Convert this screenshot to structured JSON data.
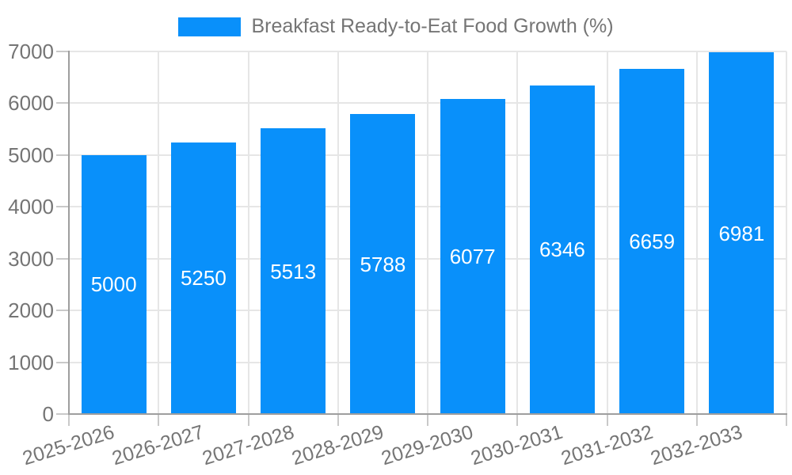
{
  "chart_data": {
    "type": "bar",
    "legend": {
      "label": "Breakfast Ready-to-Eat Food Growth (%)",
      "position": "top-center"
    },
    "categories": [
      "2025-2026",
      "2026-2027",
      "2027-2028",
      "2028-2029",
      "2029-2030",
      "2030-2031",
      "2031-2032",
      "2032-2033"
    ],
    "series": [
      {
        "name": "Breakfast Ready-to-Eat Food Growth (%)",
        "values": [
          5000,
          5250,
          5513,
          5788,
          6077,
          6346,
          6659,
          6981
        ]
      }
    ],
    "value_labels": [
      "5000",
      "5250",
      "5513",
      "5788",
      "6077",
      "6346",
      "6659",
      "6981"
    ],
    "yticks": [
      0,
      1000,
      2000,
      3000,
      4000,
      5000,
      6000,
      7000
    ],
    "ytick_labels": [
      "0",
      "1000",
      "2000",
      "3000",
      "4000",
      "5000",
      "6000",
      "7000"
    ],
    "ylim": [
      0,
      7000
    ],
    "grid": true,
    "x_label_rotation_deg": -17,
    "colors": {
      "bar": "#0990FA",
      "value_label": "#FFFFFF",
      "axis_line": "#9E9E9E",
      "grid_line": "#E6E6E6",
      "tick_line": "#C9C9C9",
      "axis_text": "#757575",
      "legend_text": "#757575",
      "background": "#FFFFFF"
    }
  }
}
